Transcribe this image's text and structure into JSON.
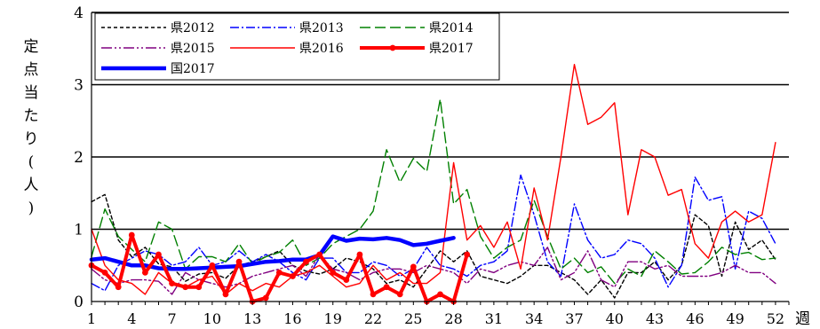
{
  "chart_data": {
    "type": "line",
    "ylabel": [
      "定",
      "点",
      "当",
      "た",
      "り",
      "(",
      "人",
      ")"
    ],
    "xlabel": "週",
    "xlim": [
      1,
      53
    ],
    "ylim": [
      0,
      4
    ],
    "yticks": [
      0,
      1,
      2,
      3,
      4
    ],
    "xticks": [
      1,
      4,
      7,
      10,
      13,
      16,
      19,
      22,
      25,
      28,
      31,
      34,
      37,
      40,
      43,
      46,
      49,
      52
    ],
    "grid": "horizontal",
    "legend_position": "top-left",
    "series": [
      {
        "name": "県2012",
        "color": "#000000",
        "dash": "4,3",
        "width": 1.4,
        "values": [
          1.38,
          1.48,
          0.85,
          0.62,
          0.75,
          0.52,
          0.48,
          0.28,
          0.38,
          0.4,
          0.32,
          0.5,
          0.55,
          0.62,
          0.7,
          0.5,
          0.42,
          0.38,
          0.45,
          0.6,
          0.55,
          0.45,
          0.25,
          0.3,
          0.2,
          0.45,
          0.7,
          0.55,
          0.7,
          0.35,
          0.3,
          0.25,
          0.35,
          0.5,
          0.5,
          0.4,
          0.3,
          0.1,
          0.3,
          0.05,
          0.4,
          0.4,
          0.55,
          0.3,
          0.5,
          1.2,
          1.05,
          0.35,
          1.1,
          0.72,
          0.85,
          0.58
        ]
      },
      {
        "name": "県2013",
        "color": "#0000ff",
        "dash": "10,3,2,3",
        "width": 1.4,
        "values": [
          0.25,
          0.15,
          0.5,
          0.6,
          0.7,
          0.65,
          0.5,
          0.55,
          0.75,
          0.5,
          0.55,
          0.7,
          0.55,
          0.65,
          0.55,
          0.4,
          0.3,
          0.6,
          0.6,
          0.4,
          0.4,
          0.55,
          0.5,
          0.35,
          0.45,
          0.75,
          0.5,
          0.45,
          0.35,
          0.5,
          0.55,
          0.7,
          1.75,
          1.2,
          0.55,
          0.35,
          1.35,
          0.85,
          0.6,
          0.65,
          0.85,
          0.8,
          0.6,
          0.2,
          0.5,
          1.72,
          1.4,
          1.45,
          0.45,
          1.25,
          1.15,
          0.8
        ]
      },
      {
        "name": "県2014",
        "color": "#008000",
        "dash": "12,5",
        "width": 1.4,
        "values": [
          0.62,
          1.28,
          0.9,
          0.72,
          0.55,
          1.1,
          1.0,
          0.45,
          0.62,
          0.62,
          0.55,
          0.8,
          0.52,
          0.62,
          0.68,
          0.85,
          0.5,
          0.6,
          0.8,
          0.9,
          1.0,
          1.25,
          2.1,
          1.65,
          1.98,
          1.8,
          2.8,
          1.35,
          1.55,
          0.9,
          0.6,
          0.75,
          0.85,
          1.4,
          0.9,
          0.45,
          0.6,
          0.4,
          0.48,
          0.25,
          0.45,
          0.35,
          0.7,
          0.55,
          0.38,
          0.4,
          0.55,
          0.75,
          0.65,
          0.68,
          0.58,
          0.6
        ]
      },
      {
        "name": "県2015",
        "color": "#800080",
        "dash": "12,3,2,3,2,3",
        "width": 1.4,
        "values": [
          0.45,
          0.3,
          0.25,
          0.3,
          0.3,
          0.28,
          0.1,
          0.4,
          0.3,
          0.25,
          0.2,
          0.25,
          0.35,
          0.4,
          0.45,
          0.5,
          0.35,
          0.65,
          0.45,
          0.4,
          0.3,
          0.4,
          0.45,
          0.45,
          0.4,
          0.5,
          0.45,
          0.4,
          0.25,
          0.45,
          0.4,
          0.5,
          0.55,
          0.5,
          0.75,
          0.3,
          0.4,
          0.7,
          0.3,
          0.2,
          0.55,
          0.55,
          0.45,
          0.5,
          0.35,
          0.35,
          0.35,
          0.4,
          0.5,
          0.4,
          0.4,
          0.25
        ]
      },
      {
        "name": "県2016",
        "color": "#ff0000",
        "dash": "",
        "width": 1.4,
        "values": [
          1.0,
          0.5,
          0.3,
          0.25,
          0.1,
          0.4,
          0.25,
          0.2,
          0.3,
          0.35,
          0.1,
          0.25,
          0.15,
          0.25,
          0.2,
          0.35,
          0.4,
          0.5,
          0.35,
          0.2,
          0.25,
          0.5,
          0.3,
          0.4,
          0.25,
          0.25,
          0.4,
          1.92,
          0.85,
          1.05,
          0.75,
          1.1,
          0.45,
          1.57,
          0.85,
          2.0,
          3.28,
          2.45,
          2.55,
          2.75,
          1.2,
          2.1,
          2.0,
          1.47,
          1.55,
          0.8,
          0.6,
          1.1,
          1.25,
          1.1,
          1.2,
          2.2
        ]
      },
      {
        "name": "県2017",
        "color": "#ff0000",
        "dash": "",
        "width": 4,
        "markers": true,
        "values": [
          0.5,
          0.4,
          0.2,
          0.92,
          0.4,
          0.65,
          0.25,
          0.2,
          0.2,
          0.5,
          0.1,
          0.55,
          0.0,
          0.05,
          0.4,
          0.35,
          0.55,
          0.65,
          0.4,
          0.3,
          0.65,
          0.1,
          0.2,
          0.1,
          0.48,
          0.0,
          0.1,
          0.0,
          0.65
        ]
      },
      {
        "name": "国2017",
        "color": "#0000ff",
        "dash": "",
        "width": 4.5,
        "values": [
          0.58,
          0.6,
          0.55,
          0.5,
          0.5,
          0.46,
          0.45,
          0.45,
          0.46,
          0.47,
          0.48,
          0.49,
          0.52,
          0.55,
          0.56,
          0.58,
          0.58,
          0.64,
          0.9,
          0.84,
          0.87,
          0.86,
          0.88,
          0.85,
          0.78,
          0.8,
          0.84,
          0.88
        ]
      }
    ]
  }
}
